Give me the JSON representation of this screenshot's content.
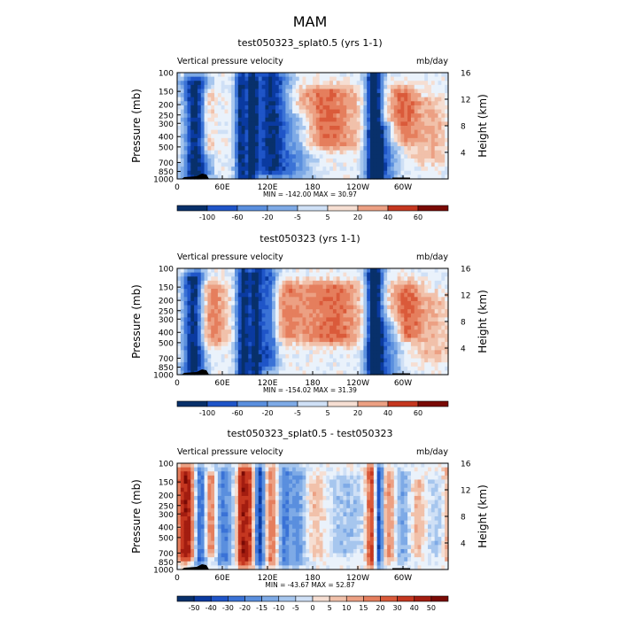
{
  "figure_title": "MAM",
  "colors": {
    "neg": [
      "#08306b",
      "#0a3aa0",
      "#1f55c8",
      "#3a72d6",
      "#5a8fde",
      "#7eaae6",
      "#a6c6ee",
      "#cfe0f6"
    ],
    "zero": "#eaf2fb",
    "pos": [
      "#f6ded2",
      "#f1c1aa",
      "#eca083",
      "#e57e5d",
      "#da5a3a",
      "#c53720",
      "#a31d10",
      "#7a0a05"
    ]
  },
  "chart_data": [
    {
      "type": "heatmap",
      "title": "test050323_splat0.5 (yrs 1-1)",
      "left_label": "Vertical pressure velocity",
      "right_label": "mb/day",
      "ylabel": "Pressure (mb)",
      "ylabel_right": "Height (km)",
      "x_ticks": [
        "0",
        "60E",
        "120E",
        "180",
        "120W",
        "60W"
      ],
      "y_ticks": [
        "100",
        "150",
        "200",
        "250",
        "300",
        "400",
        "500",
        "700",
        "850",
        "1000"
      ],
      "height_ticks": [
        "16",
        "12",
        "8",
        "4"
      ],
      "stats": "MIN = -142.00   MAX =  30.97",
      "colorbar_labels": [
        "-100",
        "-60",
        "-20",
        "-5",
        "5",
        "20",
        "40",
        "60"
      ],
      "scale": 120,
      "bands": [
        {
          "c": 25,
          "w": 12,
          "a": -1.0,
          "lo": 0.1,
          "hi": 0.95
        },
        {
          "c": 40,
          "w": 7,
          "a": 0.45,
          "lo": 0.2,
          "hi": 0.7
        },
        {
          "c": 85,
          "w": 6,
          "a": -0.85,
          "lo": 0.05,
          "hi": 1.0
        },
        {
          "c": 100,
          "w": 5,
          "a": -0.8,
          "lo": 0.05,
          "hi": 1.0
        },
        {
          "c": 125,
          "w": 16,
          "a": -0.9,
          "lo": 0.05,
          "hi": 0.9
        },
        {
          "c": 160,
          "w": 15,
          "a": -0.35,
          "lo": 0.45,
          "hi": 1.0
        },
        {
          "c": 200,
          "w": 28,
          "a": 0.5,
          "lo": 0.2,
          "hi": 0.65
        },
        {
          "c": 262,
          "w": 8,
          "a": -1.15,
          "lo": 0.05,
          "hi": 1.0
        },
        {
          "c": 278,
          "w": 12,
          "a": -0.5,
          "lo": 0.55,
          "hi": 1.0
        },
        {
          "c": 300,
          "w": 15,
          "a": 0.45,
          "lo": 0.2,
          "hi": 0.6
        },
        {
          "c": 340,
          "w": 25,
          "a": 0.2,
          "lo": 0.3,
          "hi": 0.8
        }
      ]
    },
    {
      "type": "heatmap",
      "title": "test050323 (yrs 1-1)",
      "left_label": "Vertical pressure velocity",
      "right_label": "mb/day",
      "ylabel": "Pressure (mb)",
      "ylabel_right": "Height (km)",
      "x_ticks": [
        "0",
        "60E",
        "120E",
        "180",
        "120W",
        "60W"
      ],
      "y_ticks": [
        "100",
        "150",
        "200",
        "250",
        "300",
        "400",
        "500",
        "700",
        "850",
        "1000"
      ],
      "height_ticks": [
        "16",
        "12",
        "8",
        "4"
      ],
      "stats": "MIN = -154.02   MAX =  31.39",
      "colorbar_labels": [
        "-100",
        "-60",
        "-20",
        "-5",
        "5",
        "20",
        "40",
        "60"
      ],
      "scale": 120,
      "bands": [
        {
          "c": 22,
          "w": 10,
          "a": -1.05,
          "lo": 0.1,
          "hi": 0.95
        },
        {
          "c": 45,
          "w": 14,
          "a": 0.45,
          "lo": 0.2,
          "hi": 0.65
        },
        {
          "c": 88,
          "w": 7,
          "a": -0.95,
          "lo": 0.05,
          "hi": 1.0
        },
        {
          "c": 105,
          "w": 6,
          "a": -0.85,
          "lo": 0.05,
          "hi": 1.0
        },
        {
          "c": 122,
          "w": 8,
          "a": -0.7,
          "lo": 0.05,
          "hi": 0.9
        },
        {
          "c": 145,
          "w": 15,
          "a": 0.35,
          "lo": 0.2,
          "hi": 0.6
        },
        {
          "c": 205,
          "w": 30,
          "a": 0.5,
          "lo": 0.2,
          "hi": 0.65
        },
        {
          "c": 262,
          "w": 8,
          "a": -1.2,
          "lo": 0.05,
          "hi": 1.0
        },
        {
          "c": 280,
          "w": 12,
          "a": -0.5,
          "lo": 0.55,
          "hi": 1.0
        },
        {
          "c": 305,
          "w": 14,
          "a": 0.45,
          "lo": 0.2,
          "hi": 0.6
        },
        {
          "c": 340,
          "w": 25,
          "a": 0.2,
          "lo": 0.3,
          "hi": 0.8
        }
      ]
    },
    {
      "type": "heatmap",
      "title": "test050323_splat0.5 - test050323",
      "left_label": "Vertical pressure velocity",
      "right_label": "mb/day",
      "ylabel": "Pressure (mb)",
      "ylabel_right": "Height (km)",
      "x_ticks": [
        "0",
        "60E",
        "120E",
        "180",
        "120W",
        "60W"
      ],
      "y_ticks": [
        "100",
        "150",
        "200",
        "250",
        "300",
        "400",
        "500",
        "700",
        "850",
        "1000"
      ],
      "height_ticks": [
        "16",
        "12",
        "8",
        "4"
      ],
      "stats": "MIN = -43.67   MAX =  52.87",
      "colorbar_labels": [
        "-50",
        "-40",
        "-30",
        "-20",
        "-15",
        "-10",
        "-5",
        "0",
        "5",
        "10",
        "15",
        "20",
        "30",
        "40",
        "50"
      ],
      "scale": 50,
      "bands": [
        {
          "c": 12,
          "w": 10,
          "a": 0.85,
          "lo": 0.1,
          "hi": 0.85
        },
        {
          "c": 30,
          "w": 6,
          "a": -0.7,
          "lo": 0.1,
          "hi": 0.9
        },
        {
          "c": 45,
          "w": 5,
          "a": 0.5,
          "lo": 0.15,
          "hi": 0.8
        },
        {
          "c": 62,
          "w": 8,
          "a": -0.5,
          "lo": 0.1,
          "hi": 0.9
        },
        {
          "c": 85,
          "w": 4,
          "a": 0.7,
          "lo": 0.1,
          "hi": 0.9
        },
        {
          "c": 95,
          "w": 5,
          "a": 0.75,
          "lo": 0.1,
          "hi": 0.9
        },
        {
          "c": 110,
          "w": 5,
          "a": -0.8,
          "lo": 0.1,
          "hi": 0.9
        },
        {
          "c": 125,
          "w": 6,
          "a": 0.45,
          "lo": 0.1,
          "hi": 0.9
        },
        {
          "c": 142,
          "w": 6,
          "a": -0.45,
          "lo": 0.1,
          "hi": 0.9
        },
        {
          "c": 160,
          "w": 8,
          "a": -0.4,
          "lo": 0.1,
          "hi": 0.9
        },
        {
          "c": 185,
          "w": 10,
          "a": 0.2,
          "lo": 0.2,
          "hi": 0.8
        },
        {
          "c": 225,
          "w": 20,
          "a": -0.2,
          "lo": 0.2,
          "hi": 0.8
        },
        {
          "c": 258,
          "w": 5,
          "a": 0.7,
          "lo": 0.1,
          "hi": 0.9
        },
        {
          "c": 268,
          "w": 4,
          "a": -0.8,
          "lo": 0.1,
          "hi": 0.9
        },
        {
          "c": 282,
          "w": 6,
          "a": 0.4,
          "lo": 0.15,
          "hi": 0.85
        },
        {
          "c": 300,
          "w": 8,
          "a": -0.35,
          "lo": 0.15,
          "hi": 0.85
        },
        {
          "c": 320,
          "w": 10,
          "a": 0.25,
          "lo": 0.2,
          "hi": 0.8
        },
        {
          "c": 345,
          "w": 12,
          "a": -0.2,
          "lo": 0.2,
          "hi": 0.8
        }
      ]
    }
  ]
}
